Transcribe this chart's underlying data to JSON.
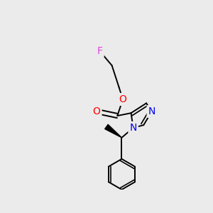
{
  "bg_color": "#ebebeb",
  "atom_colors": {
    "F": "#e040e0",
    "O": "#ff0000",
    "N": "#0000ee",
    "C": "#000000"
  },
  "bond_color": "#000000",
  "lw": 1.4
}
